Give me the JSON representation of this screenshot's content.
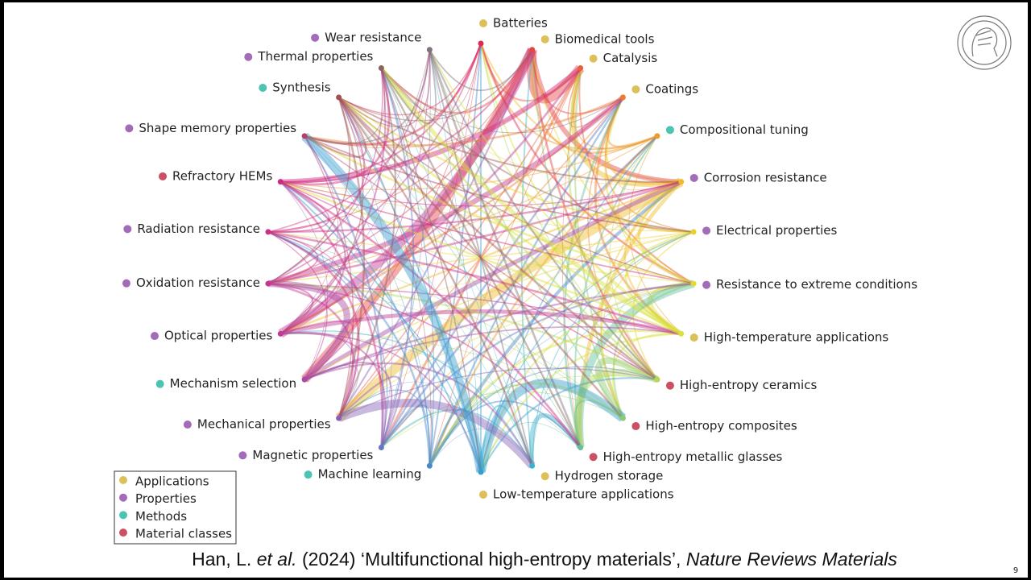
{
  "nodes": [
    {
      "label": "Batteries",
      "category": "Applications"
    },
    {
      "label": "Biomedical tools",
      "category": "Applications"
    },
    {
      "label": "Catalysis",
      "category": "Applications"
    },
    {
      "label": "Coatings",
      "category": "Applications"
    },
    {
      "label": "Compositional tuning",
      "category": "Methods"
    },
    {
      "label": "Corrosion resistance",
      "category": "Properties"
    },
    {
      "label": "Electrical properties",
      "category": "Properties"
    },
    {
      "label": "Resistance to extreme conditions",
      "category": "Properties"
    },
    {
      "label": "High-temperature applications",
      "category": "Applications"
    },
    {
      "label": "High-entropy ceramics",
      "category": "Material classes"
    },
    {
      "label": "High-entropy composites",
      "category": "Material classes"
    },
    {
      "label": "High-entropy metallic glasses",
      "category": "Material classes"
    },
    {
      "label": "Hydrogen storage",
      "category": "Applications"
    },
    {
      "label": "Low-temperature applications",
      "category": "Applications"
    },
    {
      "label": "Machine learning",
      "category": "Methods"
    },
    {
      "label": "Magnetic properties",
      "category": "Properties"
    },
    {
      "label": "Mechanical properties",
      "category": "Properties"
    },
    {
      "label": "Mechanism selection",
      "category": "Methods"
    },
    {
      "label": "Optical properties",
      "category": "Properties"
    },
    {
      "label": "Oxidation resistance",
      "category": "Properties"
    },
    {
      "label": "Radiation resistance",
      "category": "Properties"
    },
    {
      "label": "Refractory HEMs",
      "category": "Material classes"
    },
    {
      "label": "Shape memory properties",
      "category": "Properties"
    },
    {
      "label": "Synthesis",
      "category": "Methods"
    },
    {
      "label": "Thermal properties",
      "category": "Properties"
    },
    {
      "label": "Wear resistance",
      "category": "Properties"
    }
  ],
  "legend": {
    "items": [
      {
        "label": "Applications",
        "color": "#dcc05a"
      },
      {
        "label": "Properties",
        "color": "#a46cb8"
      },
      {
        "label": "Methods",
        "color": "#4cc4b4"
      },
      {
        "label": "Material classes",
        "color": "#cc5064"
      }
    ]
  },
  "citation": {
    "authors": "Han, L. ",
    "etal": "et al.",
    "rest": " (2024) ‘Multifunctional high-entropy materials’, ",
    "journal": "Nature Reviews Materials"
  },
  "page_number": "9"
}
